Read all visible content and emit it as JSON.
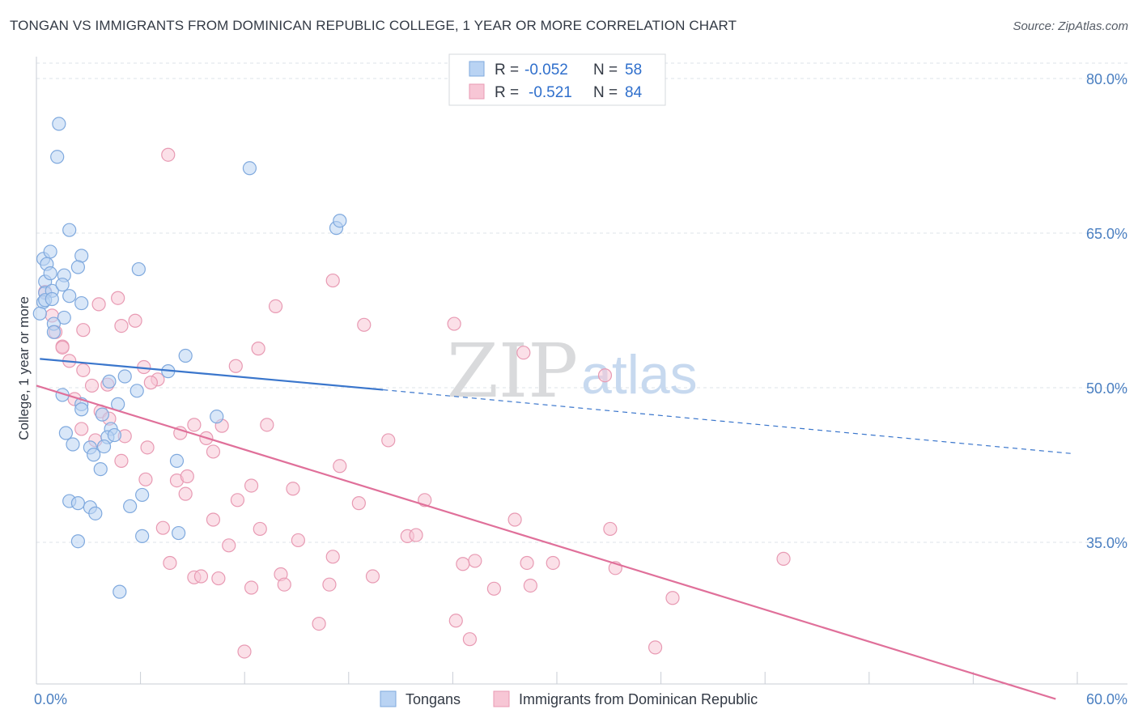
{
  "title": "TONGAN VS IMMIGRANTS FROM DOMINICAN REPUBLIC COLLEGE, 1 YEAR OR MORE CORRELATION CHART",
  "source": "Source: ZipAtlas.com",
  "watermark": {
    "zip": "ZIP",
    "atlas": "atlas"
  },
  "colors": {
    "blue_fill": "#b9d3f3",
    "blue_stroke": "#7fa9de",
    "blue_line": "#3a76cc",
    "pink_fill": "#f7c6d5",
    "pink_stroke": "#e89ab3",
    "pink_line": "#e0709a",
    "grid": "#dde3ea",
    "axis": "#c9ced6"
  },
  "legend": {
    "r_label": "R =",
    "n_label": "N =",
    "blue": {
      "r": "-0.052",
      "n": "58"
    },
    "pink": {
      "r": "-0.521",
      "n": "84"
    }
  },
  "chart_data": {
    "type": "scatter",
    "xlabel": "",
    "ylabel": "College, 1 year or more",
    "xlim": [
      0,
      60
    ],
    "ylim": [
      20,
      82
    ],
    "x_tick_labels": {
      "left": "0.0%",
      "right": "60.0%"
    },
    "y_ticks": [
      {
        "value": 80,
        "label": "80.0%"
      },
      {
        "value": 65,
        "label": "65.0%"
      },
      {
        "value": 50,
        "label": "50.0%"
      },
      {
        "value": 35,
        "label": "35.0%"
      }
    ],
    "series": [
      {
        "name": "Tongans",
        "color": "blue",
        "regression": {
          "x0": 0.2,
          "y0": 52.8,
          "x1": 20.0,
          "y1": 49.8,
          "dash_x1": 59.8,
          "dash_y1": 43.6
        },
        "points": [
          [
            1.3,
            75.6
          ],
          [
            1.2,
            72.4
          ],
          [
            12.3,
            71.3
          ],
          [
            1.9,
            65.3
          ],
          [
            17.3,
            65.5
          ],
          [
            17.5,
            66.2
          ],
          [
            0.4,
            62.5
          ],
          [
            0.8,
            63.2
          ],
          [
            0.6,
            62.0
          ],
          [
            2.6,
            62.8
          ],
          [
            2.4,
            61.7
          ],
          [
            5.9,
            61.5
          ],
          [
            0.5,
            60.3
          ],
          [
            1.6,
            60.9
          ],
          [
            0.8,
            61.1
          ],
          [
            0.5,
            59.2
          ],
          [
            0.9,
            59.4
          ],
          [
            1.9,
            58.9
          ],
          [
            0.4,
            58.3
          ],
          [
            2.6,
            58.2
          ],
          [
            0.2,
            57.2
          ],
          [
            1.6,
            56.8
          ],
          [
            1.0,
            56.2
          ],
          [
            1.0,
            55.4
          ],
          [
            8.6,
            53.1
          ],
          [
            7.6,
            51.6
          ],
          [
            5.1,
            51.1
          ],
          [
            4.2,
            50.6
          ],
          [
            5.8,
            49.7
          ],
          [
            1.5,
            49.3
          ],
          [
            2.6,
            48.4
          ],
          [
            4.7,
            48.4
          ],
          [
            2.6,
            47.9
          ],
          [
            3.8,
            47.4
          ],
          [
            10.4,
            47.2
          ],
          [
            4.3,
            46.0
          ],
          [
            1.7,
            45.6
          ],
          [
            4.1,
            45.2
          ],
          [
            4.5,
            45.4
          ],
          [
            2.1,
            44.5
          ],
          [
            3.9,
            44.3
          ],
          [
            3.1,
            44.2
          ],
          [
            3.3,
            43.5
          ],
          [
            8.1,
            42.9
          ],
          [
            3.7,
            42.1
          ],
          [
            1.9,
            39.0
          ],
          [
            6.1,
            39.6
          ],
          [
            2.4,
            38.8
          ],
          [
            5.4,
            38.5
          ],
          [
            3.1,
            38.4
          ],
          [
            3.4,
            37.8
          ],
          [
            8.2,
            35.9
          ],
          [
            6.1,
            35.6
          ],
          [
            2.4,
            35.1
          ],
          [
            4.8,
            30.2
          ],
          [
            0.5,
            58.5
          ],
          [
            0.9,
            58.6
          ],
          [
            1.5,
            60.0
          ]
        ]
      },
      {
        "name": "Immigrants from Dominican Republic",
        "color": "pink",
        "regression": {
          "x0": 0.0,
          "y0": 50.2,
          "x1": 58.8,
          "y1": 19.8
        },
        "points": [
          [
            7.6,
            72.6
          ],
          [
            17.1,
            60.4
          ],
          [
            0.5,
            59.3
          ],
          [
            4.7,
            58.7
          ],
          [
            3.6,
            58.1
          ],
          [
            13.8,
            57.9
          ],
          [
            0.9,
            57.0
          ],
          [
            5.7,
            56.5
          ],
          [
            18.9,
            56.1
          ],
          [
            24.1,
            56.2
          ],
          [
            4.9,
            56.0
          ],
          [
            1.1,
            55.4
          ],
          [
            1.5,
            54.0
          ],
          [
            1.5,
            53.9
          ],
          [
            12.8,
            53.8
          ],
          [
            28.1,
            53.4
          ],
          [
            1.9,
            52.6
          ],
          [
            6.2,
            52.0
          ],
          [
            11.5,
            52.1
          ],
          [
            32.8,
            51.2
          ],
          [
            2.7,
            51.7
          ],
          [
            7.0,
            50.8
          ],
          [
            3.2,
            50.2
          ],
          [
            4.1,
            50.3
          ],
          [
            6.6,
            50.5
          ],
          [
            2.2,
            48.9
          ],
          [
            3.7,
            47.7
          ],
          [
            4.2,
            47.0
          ],
          [
            9.1,
            46.4
          ],
          [
            8.3,
            45.6
          ],
          [
            10.7,
            46.3
          ],
          [
            13.3,
            46.4
          ],
          [
            20.3,
            44.9
          ],
          [
            5.1,
            45.3
          ],
          [
            3.4,
            44.9
          ],
          [
            9.8,
            45.1
          ],
          [
            6.4,
            44.2
          ],
          [
            2.6,
            46.0
          ],
          [
            10.2,
            43.8
          ],
          [
            4.9,
            42.9
          ],
          [
            17.5,
            42.4
          ],
          [
            8.1,
            41.0
          ],
          [
            8.7,
            41.4
          ],
          [
            6.3,
            41.1
          ],
          [
            12.4,
            40.5
          ],
          [
            14.8,
            40.2
          ],
          [
            8.6,
            39.7
          ],
          [
            11.6,
            39.1
          ],
          [
            18.6,
            38.8
          ],
          [
            22.4,
            39.1
          ],
          [
            10.2,
            37.2
          ],
          [
            27.6,
            37.2
          ],
          [
            7.3,
            36.4
          ],
          [
            12.9,
            36.3
          ],
          [
            33.1,
            36.3
          ],
          [
            21.4,
            35.6
          ],
          [
            21.9,
            35.7
          ],
          [
            15.1,
            35.2
          ],
          [
            11.1,
            34.7
          ],
          [
            17.1,
            33.6
          ],
          [
            25.3,
            33.2
          ],
          [
            28.3,
            33.0
          ],
          [
            29.8,
            33.0
          ],
          [
            7.7,
            33.0
          ],
          [
            33.4,
            32.5
          ],
          [
            43.1,
            33.4
          ],
          [
            14.1,
            31.9
          ],
          [
            9.1,
            31.6
          ],
          [
            9.5,
            31.7
          ],
          [
            10.5,
            31.5
          ],
          [
            19.4,
            31.7
          ],
          [
            28.5,
            30.8
          ],
          [
            14.3,
            30.9
          ],
          [
            16.9,
            30.9
          ],
          [
            12.4,
            30.6
          ],
          [
            26.4,
            30.5
          ],
          [
            36.7,
            29.6
          ],
          [
            24.2,
            27.4
          ],
          [
            16.3,
            27.1
          ],
          [
            25.0,
            25.6
          ],
          [
            35.7,
            24.8
          ],
          [
            12.0,
            24.4
          ],
          [
            24.6,
            32.9
          ],
          [
            2.7,
            55.6
          ]
        ]
      }
    ]
  },
  "bottom_legend": {
    "blue_label": "Tongans",
    "pink_label": "Immigrants from Dominican Republic"
  }
}
